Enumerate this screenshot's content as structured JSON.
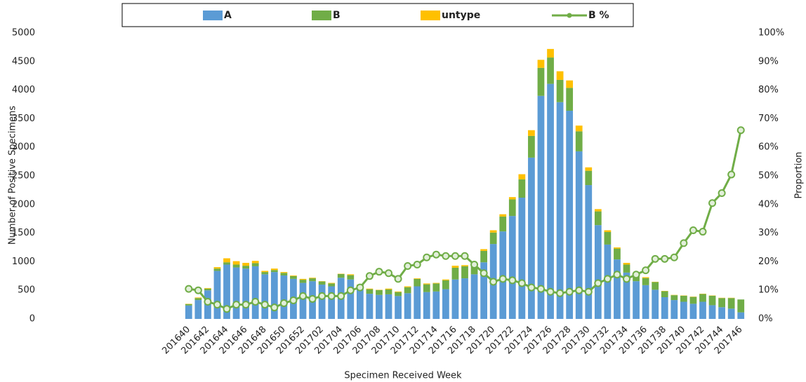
{
  "chart_data": {
    "type": "bar",
    "stacked": true,
    "grid": false,
    "x_label": "Specimen Received Week",
    "y_label": "Number of Positive Specimens",
    "y2_label": "Proportion",
    "categories": [
      "201640",
      null,
      "201642",
      null,
      "201644",
      null,
      "201646",
      null,
      "201648",
      null,
      "201650",
      null,
      "201652",
      null,
      "201702",
      null,
      "201704",
      null,
      "201706",
      null,
      "201708",
      null,
      "201710",
      null,
      "201712",
      null,
      "201714",
      null,
      "201716",
      null,
      "201718",
      null,
      "201720",
      null,
      "201722",
      null,
      "201724",
      null,
      "201726",
      null,
      "201728",
      null,
      "201730",
      null,
      "201732",
      null,
      "201734",
      null,
      "201736",
      null,
      "201738",
      null,
      "201740",
      null,
      "201742",
      null,
      "201744",
      null,
      "201746"
    ],
    "series": [
      {
        "name": "A",
        "color": "#5b9bd5",
        "values": [
          235,
          330,
          500,
          840,
          950,
          900,
          880,
          920,
          780,
          820,
          760,
          700,
          630,
          660,
          600,
          570,
          720,
          690,
          530,
          440,
          420,
          430,
          400,
          450,
          570,
          470,
          480,
          520,
          690,
          710,
          780,
          990,
          1310,
          1530,
          1800,
          2120,
          2820,
          3900,
          4110,
          3790,
          3640,
          2930,
          2340,
          1640,
          1300,
          1040,
          810,
          660,
          590,
          510,
          380,
          330,
          300,
          265,
          300,
          240,
          205,
          180,
          115
        ]
      },
      {
        "name": "B",
        "color": "#70ad47",
        "values": [
          25,
          35,
          30,
          40,
          40,
          50,
          50,
          55,
          40,
          35,
          45,
          50,
          55,
          50,
          55,
          50,
          65,
          75,
          65,
          80,
          85,
          85,
          70,
          105,
          130,
          135,
          140,
          155,
          205,
          210,
          170,
          200,
          200,
          260,
          290,
          320,
          380,
          490,
          460,
          390,
          400,
          350,
          250,
          240,
          220,
          190,
          140,
          125,
          125,
          135,
          105,
          85,
          105,
          120,
          135,
          165,
          160,
          185,
          225
        ]
      },
      {
        "name": "untype",
        "color": "#ffc000",
        "values": [
          5,
          10,
          10,
          25,
          70,
          60,
          50,
          40,
          20,
          25,
          15,
          10,
          15,
          10,
          5,
          10,
          5,
          15,
          5,
          10,
          5,
          15,
          10,
          15,
          10,
          15,
          10,
          15,
          35,
          20,
          10,
          30,
          40,
          40,
          40,
          90,
          100,
          140,
          150,
          150,
          130,
          100,
          60,
          40,
          30,
          20,
          30,
          15,
          15,
          5,
          5,
          5,
          5,
          5,
          5,
          5,
          5,
          5,
          0
        ]
      },
      {
        "name": "B %",
        "color": "#70ad47",
        "type": "line",
        "axis": "y2",
        "values": [
          10.5,
          10,
          6,
          5,
          3.5,
          5,
          5,
          6,
          5,
          4,
          5.5,
          6.5,
          8,
          7,
          8,
          8,
          8,
          10,
          11,
          15,
          16.5,
          16,
          14,
          18.5,
          19,
          21.5,
          22.5,
          22,
          22,
          22,
          19,
          16,
          13,
          14,
          13.5,
          12.5,
          11,
          10.5,
          9.5,
          9,
          9.5,
          10,
          9.5,
          12.5,
          14,
          15.5,
          14,
          15.5,
          17,
          21,
          21,
          21.5,
          26.5,
          31,
          30.5,
          40.5,
          44,
          50.5,
          66
        ]
      }
    ],
    "ylim": [
      0,
      5000
    ],
    "yticks": [
      0,
      500,
      1000,
      1500,
      2000,
      2500,
      3000,
      3500,
      4000,
      4500,
      5000
    ],
    "y2lim": [
      0,
      100
    ],
    "y2ticks": [
      {
        "value": 0,
        "label": "0%"
      },
      {
        "value": 10,
        "label": "10%"
      },
      {
        "value": 20,
        "label": "20%"
      },
      {
        "value": 30,
        "label": "30%"
      },
      {
        "value": 40,
        "label": "40%"
      },
      {
        "value": 50,
        "label": "50%"
      },
      {
        "value": 60,
        "label": "60%"
      },
      {
        "value": 70,
        "label": "70%"
      },
      {
        "value": 80,
        "label": "80%"
      },
      {
        "value": 90,
        "label": "90%"
      },
      {
        "value": 100,
        "label": "100%"
      }
    ]
  }
}
